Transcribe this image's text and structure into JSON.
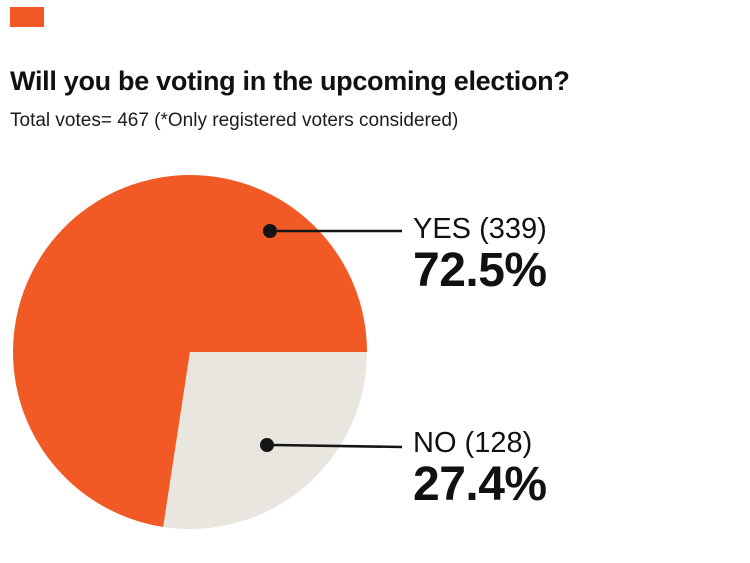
{
  "page": {
    "background": "#ffffff",
    "brand_mark_color": "#f15a24"
  },
  "header": {
    "title": "Will you be voting in the upcoming election?",
    "subtitle": "Total votes= 467 (*Only registered voters considered)"
  },
  "chart_data": {
    "type": "pie",
    "title": "Will you be voting in the upcoming election?",
    "total_votes": 467,
    "note": "*Only registered voters considered",
    "start_angle_deg": 98.7,
    "legend_position": "right-callouts",
    "slices": [
      {
        "label": "YES",
        "votes": 339,
        "percent": 72.5,
        "label_text": "YES (339)",
        "percent_text": "72.5%",
        "color": "#f15a24"
      },
      {
        "label": "NO",
        "votes": 128,
        "percent": 27.4,
        "label_text": "NO (128)",
        "percent_text": "27.4%",
        "color": "#e8e6df"
      }
    ]
  }
}
